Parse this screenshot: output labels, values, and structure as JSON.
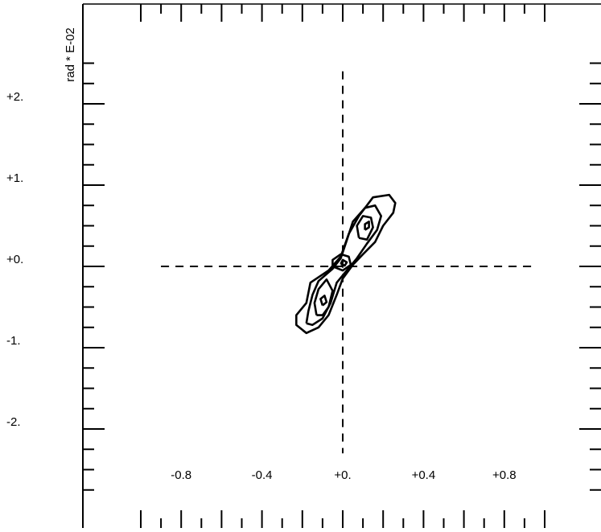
{
  "chart_data": {
    "type": "contour",
    "title": "",
    "xlabel": "",
    "ylabel": "rad * E-02",
    "xlim": [
      -1.0,
      1.0
    ],
    "ylim": [
      -3.0,
      3.0
    ],
    "x_tick_labels": [
      {
        "value": -0.8,
        "label": "-0.8"
      },
      {
        "value": -0.4,
        "label": "-0.4"
      },
      {
        "value": 0.0,
        "label": "+0."
      },
      {
        "value": 0.4,
        "label": "+0.4"
      },
      {
        "value": 0.8,
        "label": "+0.8"
      }
    ],
    "y_tick_labels": [
      {
        "value": 2,
        "label": "+2."
      },
      {
        "value": 1,
        "label": "+1."
      },
      {
        "value": 0,
        "label": "+0."
      },
      {
        "value": -1,
        "label": "-1."
      },
      {
        "value": -2,
        "label": "-2."
      }
    ],
    "x_minor_step": 0.1,
    "y_minor_step": 0.25,
    "crosshair": {
      "horizontal_x": [
        -0.9,
        0.95
      ],
      "vertical_y": [
        -2.3,
        2.4
      ]
    },
    "contours": [
      {
        "level": 1,
        "points": [
          [
            -0.2,
            -0.78
          ],
          [
            -0.23,
            -0.72
          ],
          [
            -0.23,
            -0.6
          ],
          [
            -0.18,
            -0.45
          ],
          [
            -0.16,
            -0.2
          ],
          [
            -0.07,
            -0.05
          ],
          [
            -0.01,
            0.12
          ],
          [
            0.03,
            0.4
          ],
          [
            0.08,
            0.62
          ],
          [
            0.15,
            0.85
          ],
          [
            0.23,
            0.88
          ],
          [
            0.26,
            0.78
          ],
          [
            0.25,
            0.66
          ],
          [
            0.2,
            0.5
          ],
          [
            0.16,
            0.3
          ],
          [
            0.1,
            0.15
          ],
          [
            0.05,
            0.02
          ],
          [
            0.0,
            -0.15
          ],
          [
            -0.03,
            -0.35
          ],
          [
            -0.07,
            -0.6
          ],
          [
            -0.12,
            -0.75
          ],
          [
            -0.18,
            -0.82
          ],
          [
            -0.2,
            -0.78
          ]
        ]
      },
      {
        "level": 2,
        "points": [
          [
            -0.18,
            -0.7
          ],
          [
            -0.17,
            -0.55
          ],
          [
            -0.15,
            -0.35
          ],
          [
            -0.12,
            -0.18
          ],
          [
            -0.05,
            -0.03
          ],
          [
            -0.01,
            0.1
          ],
          [
            0.02,
            0.32
          ],
          [
            0.05,
            0.55
          ],
          [
            0.11,
            0.72
          ],
          [
            0.16,
            0.75
          ],
          [
            0.19,
            0.62
          ],
          [
            0.17,
            0.45
          ],
          [
            0.12,
            0.28
          ],
          [
            0.07,
            0.1
          ],
          [
            0.02,
            -0.05
          ],
          [
            -0.03,
            -0.2
          ],
          [
            -0.06,
            -0.45
          ],
          [
            -0.1,
            -0.64
          ],
          [
            -0.15,
            -0.72
          ],
          [
            -0.18,
            -0.7
          ]
        ]
      },
      {
        "level": 3,
        "points": [
          [
            -0.13,
            -0.6
          ],
          [
            -0.14,
            -0.45
          ],
          [
            -0.12,
            -0.28
          ],
          [
            -0.08,
            -0.16
          ],
          [
            -0.05,
            -0.3
          ],
          [
            -0.07,
            -0.5
          ],
          [
            -0.1,
            -0.6
          ],
          [
            -0.13,
            -0.6
          ]
        ]
      },
      {
        "level": 3,
        "points": [
          [
            0.08,
            0.35
          ],
          [
            0.07,
            0.5
          ],
          [
            0.1,
            0.62
          ],
          [
            0.14,
            0.6
          ],
          [
            0.15,
            0.48
          ],
          [
            0.12,
            0.33
          ],
          [
            0.08,
            0.35
          ]
        ]
      },
      {
        "level": 3,
        "points": [
          [
            -0.05,
            0.0
          ],
          [
            -0.05,
            0.08
          ],
          [
            -0.01,
            0.15
          ],
          [
            0.03,
            0.12
          ],
          [
            0.04,
            0.02
          ],
          [
            0.0,
            -0.05
          ],
          [
            -0.05,
            0.0
          ]
        ]
      },
      {
        "level": 4,
        "points": [
          [
            -0.01,
            0.03
          ],
          [
            0.0,
            0.08
          ],
          [
            0.02,
            0.05
          ],
          [
            0.01,
            0.01
          ],
          [
            -0.01,
            0.03
          ]
        ]
      },
      {
        "level": 4,
        "points": [
          [
            -0.1,
            -0.48
          ],
          [
            -0.11,
            -0.4
          ],
          [
            -0.09,
            -0.36
          ],
          [
            -0.08,
            -0.44
          ],
          [
            -0.1,
            -0.48
          ]
        ]
      },
      {
        "level": 4,
        "points": [
          [
            0.11,
            0.45
          ],
          [
            0.11,
            0.52
          ],
          [
            0.13,
            0.55
          ],
          [
            0.13,
            0.48
          ],
          [
            0.11,
            0.45
          ]
        ]
      }
    ]
  }
}
